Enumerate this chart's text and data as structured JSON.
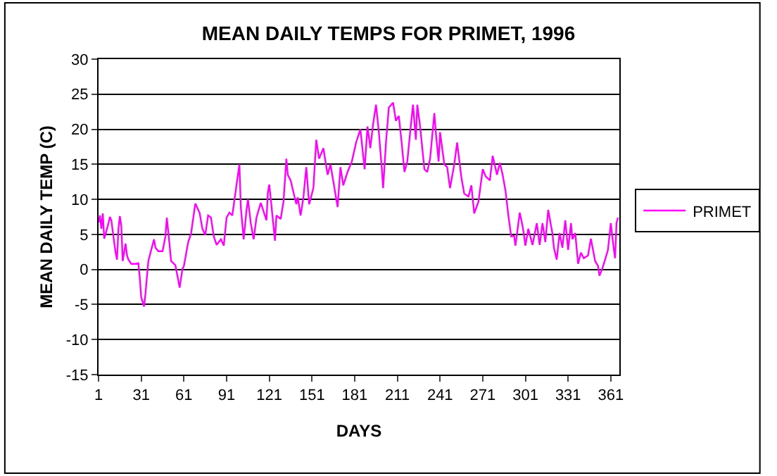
{
  "chart_data": {
    "type": "line",
    "title": "MEAN DAILY TEMPS FOR PRIMET, 1996",
    "xlabel": "DAYS",
    "ylabel": "MEAN DAILY TEMP (C)",
    "x": [
      1,
      2,
      3,
      4,
      5,
      6,
      8,
      9,
      10,
      12,
      13,
      14,
      15,
      16,
      17,
      18,
      20,
      21,
      22,
      24,
      27,
      29,
      30,
      31,
      33,
      34,
      36,
      37,
      40,
      41,
      43,
      46,
      48,
      49,
      50,
      52,
      55,
      57,
      58,
      60,
      61,
      64,
      66,
      69,
      72,
      74,
      76,
      78,
      80,
      82,
      84,
      87,
      89,
      91,
      93,
      95,
      98,
      100,
      101,
      103,
      105,
      106,
      108,
      110,
      112,
      115,
      116,
      119,
      120,
      121,
      125,
      126,
      129,
      131,
      133,
      134,
      136,
      138,
      140,
      141,
      143,
      145,
      147,
      149,
      152,
      154,
      156,
      159,
      162,
      164,
      169,
      171,
      173,
      176,
      179,
      182,
      185,
      187,
      188,
      190,
      192,
      194,
      196,
      198,
      200,
      201,
      203,
      205,
      208,
      210,
      212,
      214,
      216,
      218,
      220,
      222,
      224,
      225,
      227,
      230,
      232,
      234,
      237,
      238,
      240,
      241,
      244,
      246,
      248,
      251,
      253,
      256,
      258,
      261,
      263,
      265,
      268,
      271,
      273,
      276,
      278,
      281,
      283,
      285,
      287,
      289,
      291,
      293,
      294,
      297,
      299,
      301,
      303,
      306,
      309,
      311,
      313,
      315,
      317,
      320,
      321,
      323,
      325,
      327,
      329,
      331,
      333,
      334,
      336,
      338,
      340,
      342,
      345,
      347,
      350,
      352,
      353,
      355,
      357,
      359,
      361,
      363,
      364,
      365,
      366
    ],
    "series": [
      {
        "name": "PRIMET",
        "color": "#ff00ff",
        "values": [
          6.7,
          7.7,
          5.8,
          8.0,
          4.4,
          5.1,
          6.6,
          7.5,
          7.0,
          3.9,
          2.4,
          1.4,
          5.8,
          7.6,
          6.2,
          1.2,
          3.7,
          2.0,
          1.4,
          0.8,
          0.8,
          0.9,
          -1.2,
          -4.0,
          -5.3,
          -3.4,
          1.2,
          2.0,
          4.3,
          3.1,
          2.6,
          2.6,
          4.7,
          7.4,
          5.4,
          1.2,
          0.6,
          -1.5,
          -2.6,
          0.1,
          0.5,
          3.9,
          5.1,
          9.4,
          8.1,
          5.8,
          4.9,
          7.7,
          7.4,
          4.7,
          3.5,
          4.3,
          3.4,
          7.4,
          8.1,
          7.7,
          12.1,
          15.0,
          8.9,
          4.3,
          8.5,
          10.0,
          6.6,
          4.3,
          7.4,
          9.5,
          8.9,
          7.0,
          11.0,
          12.1,
          4.1,
          7.7,
          7.2,
          9.7,
          15.8,
          13.5,
          12.7,
          11.0,
          9.3,
          10.3,
          7.7,
          10.3,
          14.6,
          9.3,
          11.6,
          18.5,
          15.8,
          17.3,
          13.5,
          15.0,
          8.9,
          14.6,
          12.0,
          13.9,
          15.4,
          18.1,
          20.0,
          16.2,
          14.3,
          20.4,
          17.3,
          20.8,
          23.5,
          19.6,
          14.6,
          11.6,
          18.1,
          23.1,
          23.8,
          21.2,
          21.9,
          18.1,
          13.9,
          15.4,
          19.6,
          23.5,
          18.5,
          23.5,
          20.4,
          14.3,
          13.9,
          15.8,
          22.3,
          19.6,
          15.4,
          19.6,
          15.0,
          14.6,
          11.6,
          15.0,
          18.1,
          13.1,
          10.8,
          10.4,
          12.0,
          8.0,
          9.7,
          14.3,
          13.3,
          12.7,
          16.2,
          13.5,
          15.2,
          13.5,
          11.2,
          7.7,
          4.7,
          4.8,
          3.4,
          8.1,
          6.2,
          3.4,
          5.8,
          3.5,
          6.6,
          3.5,
          6.6,
          3.9,
          8.5,
          5.1,
          3.1,
          1.4,
          5.2,
          3.1,
          7.0,
          2.8,
          6.6,
          4.3,
          5.2,
          0.8,
          2.4,
          1.6,
          2.0,
          4.4,
          1.2,
          0.5,
          -0.9,
          0.1,
          1.4,
          2.8,
          6.6,
          3.1,
          1.6,
          6.6,
          7.4
        ]
      }
    ],
    "xlim": [
      1,
      367
    ],
    "xticks": [
      1,
      31,
      61,
      91,
      121,
      151,
      181,
      211,
      241,
      271,
      301,
      331,
      361
    ],
    "ylim": [
      -15,
      30
    ],
    "yticks": [
      -15,
      -10,
      -5,
      0,
      5,
      10,
      15,
      20,
      25,
      30
    ],
    "grid": "y",
    "legend": "right",
    "marker": "none",
    "line_style": "solid"
  }
}
